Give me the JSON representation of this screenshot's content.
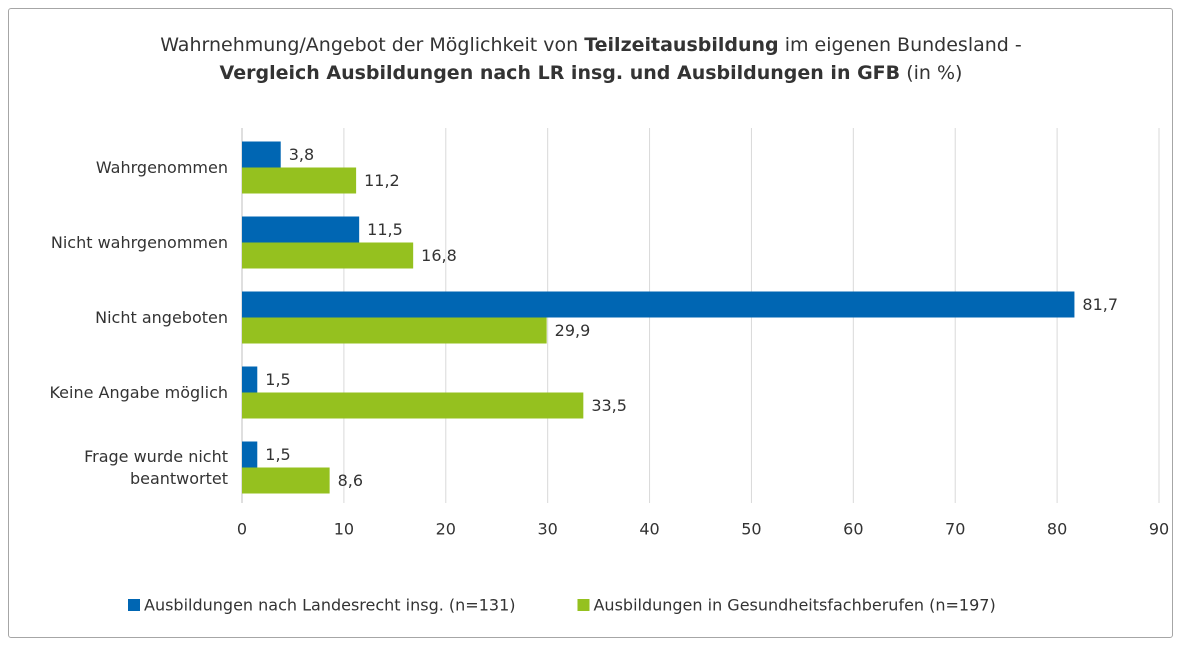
{
  "chart_data": {
    "type": "barh",
    "title": {
      "lines": [
        [
          {
            "text": "Wahrnehmung/Angebot der Möglichkeit von ",
            "bold": false
          },
          {
            "text": "Teilzeitausbildung",
            "bold": true
          },
          {
            "text": " im eigenen Bundesland -",
            "bold": false
          }
        ],
        [
          {
            "text": "Vergleich Ausbildungen nach LR insg. und Ausbildungen in GFB",
            "bold": true
          },
          {
            "text": " (in %)",
            "bold": false
          }
        ]
      ]
    },
    "categories": [
      "Wahrgenommen",
      "Nicht wahrgenommen",
      "Nicht angeboten",
      "Keine Angabe möglich",
      "Frage wurde nicht beantwortet"
    ],
    "series": [
      {
        "name": "Ausbildungen nach Landesrecht insg. (n=131)",
        "color": "#0066b3",
        "values": [
          3.8,
          11.5,
          81.7,
          1.5,
          1.5
        ],
        "value_labels": [
          "3,8",
          "11,5",
          "81,7",
          "1,5",
          "1,5"
        ]
      },
      {
        "name": "Ausbildungen in Gesundheitsfachberufen (n=197)",
        "color": "#95c11f",
        "values": [
          11.2,
          16.8,
          29.9,
          33.5,
          8.6
        ],
        "value_labels": [
          "11,2",
          "16,8",
          "29,9",
          "33,5",
          "8,6"
        ]
      }
    ],
    "xlim": [
      0,
      90
    ],
    "xticks": [
      0,
      10,
      20,
      30,
      40,
      50,
      60,
      70,
      80,
      90
    ],
    "grid": true,
    "legend": "bottom"
  }
}
